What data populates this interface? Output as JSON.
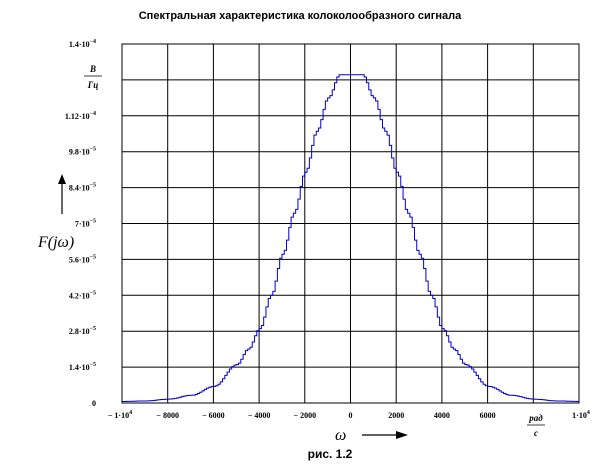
{
  "chart_data": {
    "type": "line",
    "title": "Спектральная характеристика колоколообразного сигнала",
    "caption": "рис. 1.2",
    "ylabel": "F(jω)",
    "xlabel": "ω",
    "y_unit": {
      "num": "B",
      "den": "Гц"
    },
    "x_unit": {
      "num": "рад",
      "den": "c"
    },
    "xlim": [
      -10000,
      10000
    ],
    "ylim": [
      0,
      0.00014
    ],
    "grid": true,
    "x_ticks": [
      -10000,
      -8000,
      -6000,
      -4000,
      -2000,
      0,
      2000,
      4000,
      6000,
      8000,
      10000
    ],
    "x_tick_labels": [
      {
        "m": "− 1·10",
        "e": "4"
      },
      {
        "m": "− 8000",
        "e": ""
      },
      {
        "m": "− 6000",
        "e": ""
      },
      {
        "m": "− 4000",
        "e": ""
      },
      {
        "m": "− 2000",
        "e": ""
      },
      {
        "m": "0",
        "e": ""
      },
      {
        "m": "2000",
        "e": ""
      },
      {
        "m": "4000",
        "e": ""
      },
      {
        "m": "6000",
        "e": ""
      },
      {
        "m": "",
        "e": ""
      },
      {
        "m": "1·10",
        "e": "4"
      }
    ],
    "y_ticks": [
      0,
      1.4e-05,
      2.8e-05,
      4.2e-05,
      5.6e-05,
      7e-05,
      8.4e-05,
      9.8e-05,
      0.000112,
      0.000126,
      0.00014
    ],
    "y_tick_labels": [
      {
        "m": "0",
        "e": ""
      },
      {
        "m": "1.4·10",
        "e": "−5"
      },
      {
        "m": "2.8·10",
        "e": "−5"
      },
      {
        "m": "4.2·10",
        "e": "−5"
      },
      {
        "m": "5.6·10",
        "e": "−5"
      },
      {
        "m": "7·10",
        "e": "−5"
      },
      {
        "m": "8.4·10",
        "e": "−5"
      },
      {
        "m": "9.8·10",
        "e": "−5"
      },
      {
        "m": "1.12·10",
        "e": "−4"
      },
      {
        "m": "",
        "e": ""
      },
      {
        "m": "1.4·10",
        "e": "−4"
      }
    ],
    "series": [
      {
        "color": "#0000cc",
        "x": [
          -10000,
          -9000,
          -8000,
          -7000,
          -6000,
          -5000,
          -4500,
          -4000,
          -3500,
          -3000,
          -2500,
          -2000,
          -1500,
          -1000,
          -500,
          0,
          500,
          1000,
          1500,
          2000,
          2500,
          3000,
          3500,
          4000,
          4500,
          5000,
          6000,
          7000,
          8000,
          9000,
          10000
        ],
        "y": [
          6e-07,
          8e-07,
          1.5e-06,
          3e-06,
          6.5e-06,
          1.5e-05,
          2.1e-05,
          2.9e-05,
          4.2e-05,
          5.8e-05,
          7.4e-05,
          9e-05,
          0.000106,
          0.000119,
          0.000128,
          0.000128,
          0.000128,
          0.000119,
          0.000106,
          9e-05,
          7.4e-05,
          5.8e-05,
          4.2e-05,
          2.9e-05,
          2.1e-05,
          1.5e-05,
          6.5e-06,
          3e-06,
          1.5e-06,
          8e-07,
          6e-07
        ]
      }
    ]
  }
}
